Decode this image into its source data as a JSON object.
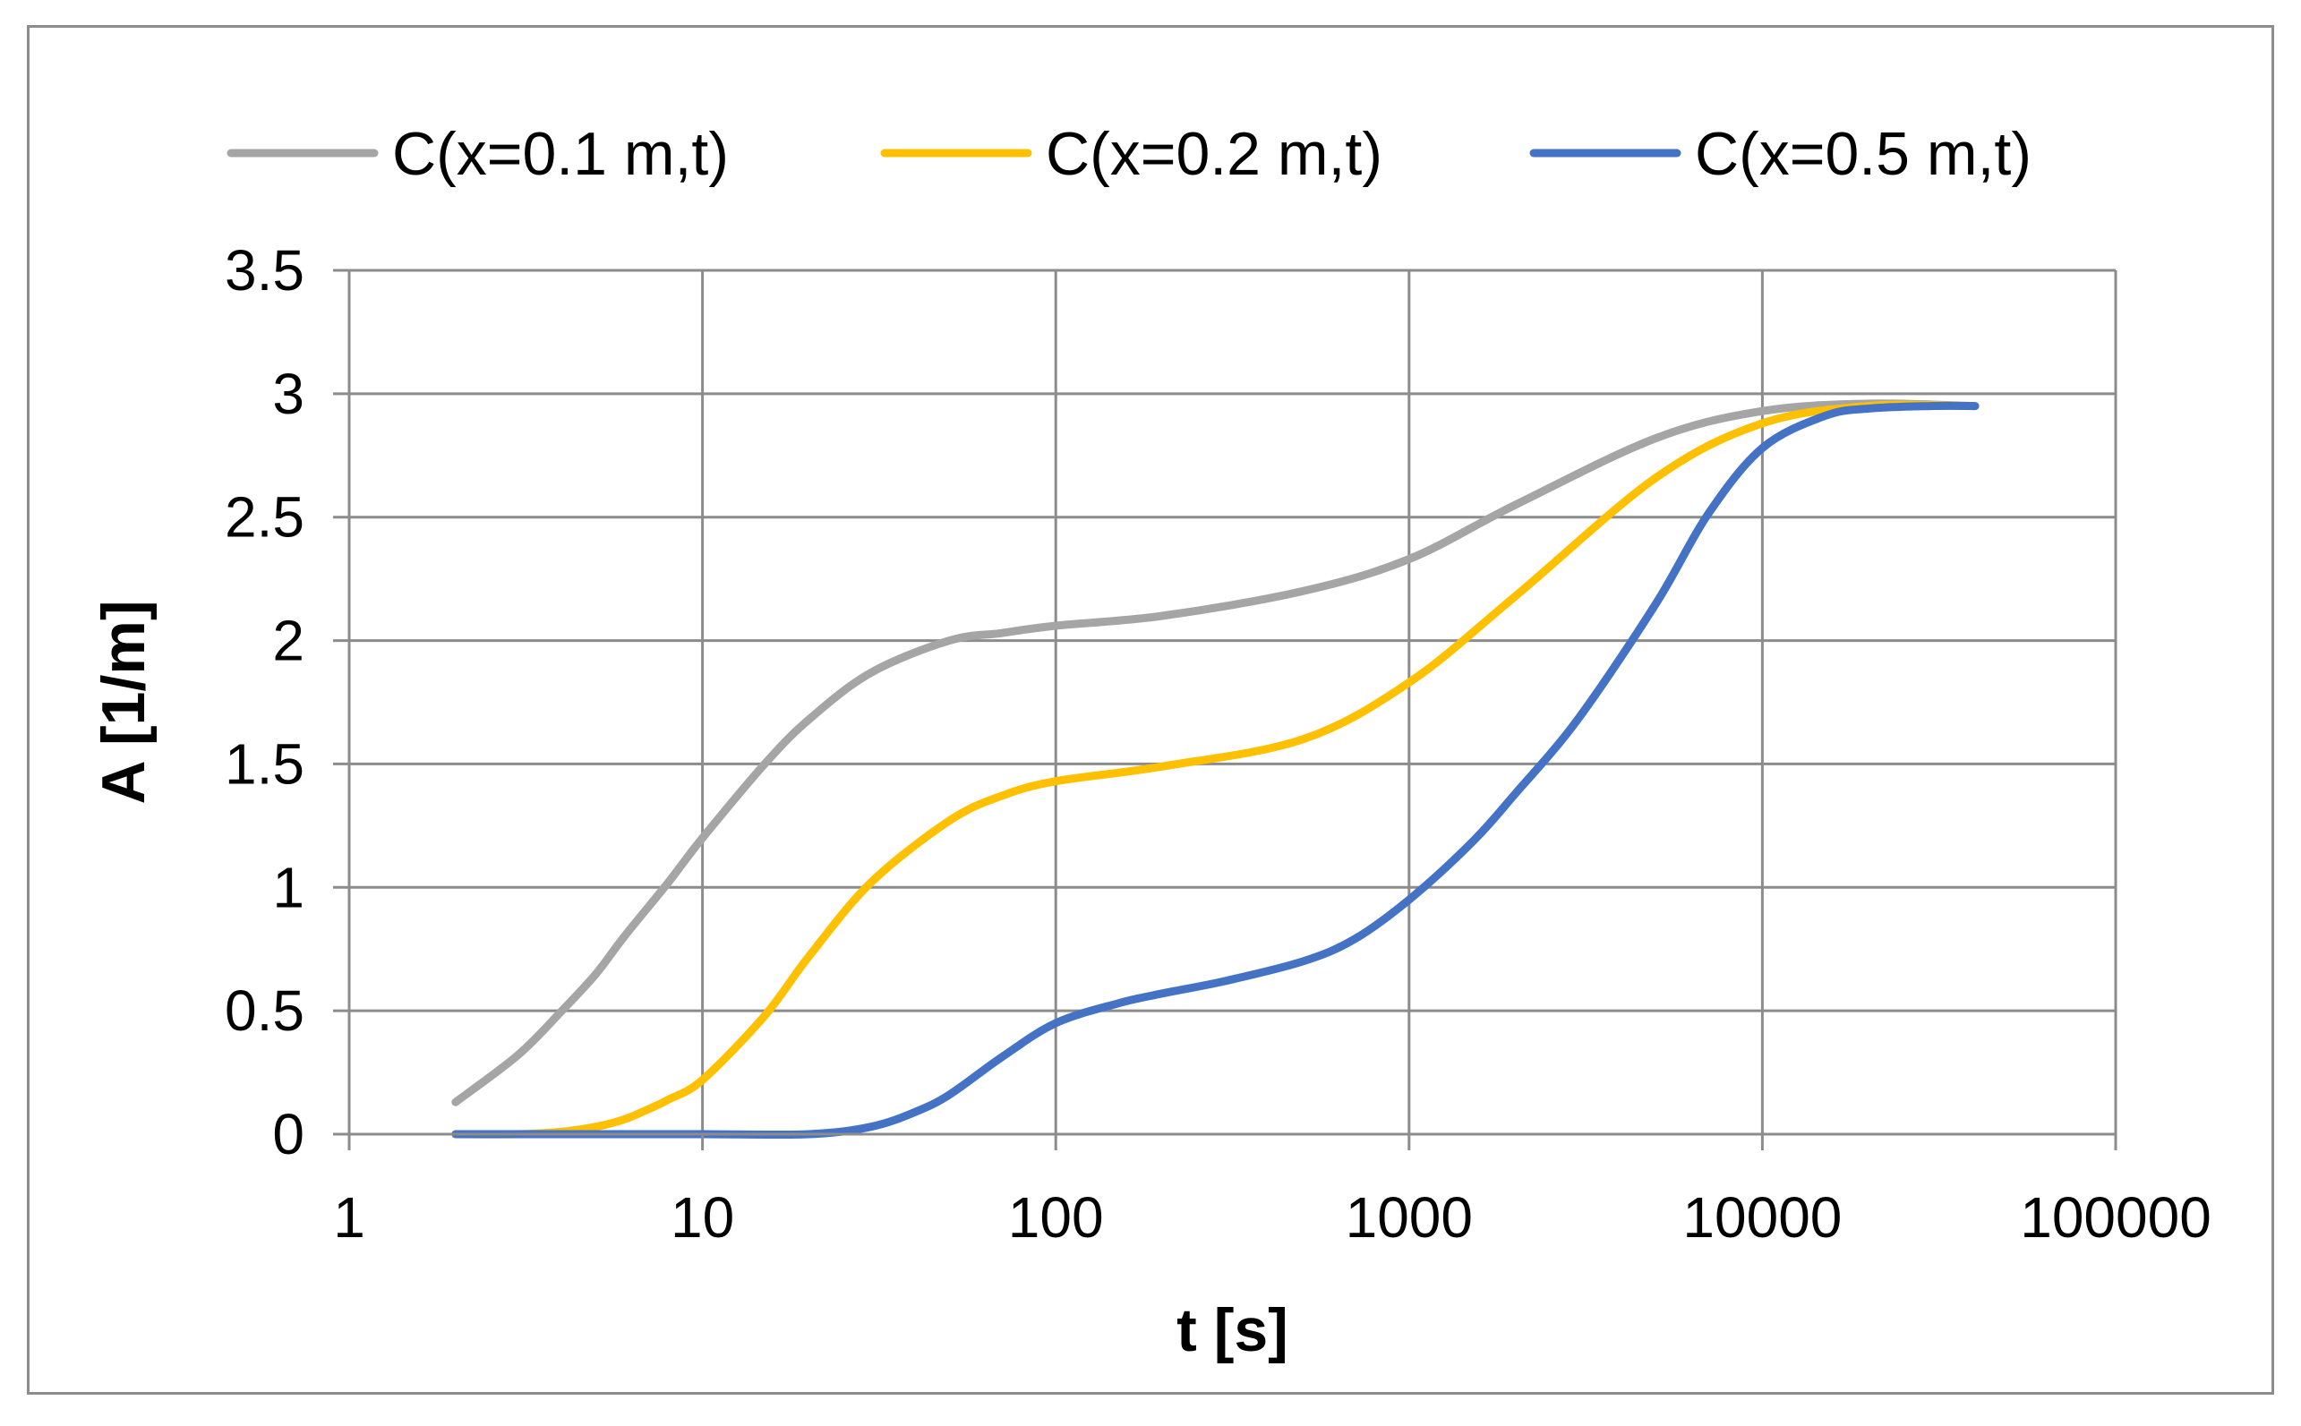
{
  "chart_data": {
    "type": "line",
    "title": "",
    "xlabel": "t [s]",
    "ylabel": "A [1/m]",
    "xscale": "log",
    "xlim": [
      1,
      100000
    ],
    "ylim": [
      0,
      3.5
    ],
    "x_ticks": [
      1,
      10,
      100,
      1000,
      10000,
      100000
    ],
    "x_tick_labels": [
      "1",
      "10",
      "100",
      "1000",
      "10000",
      "100000"
    ],
    "y_ticks": [
      0,
      0.5,
      1,
      1.5,
      2,
      2.5,
      3,
      3.5
    ],
    "y_tick_labels": [
      "0",
      "0.5",
      "1",
      "1.5",
      "2",
      "2.5",
      "3",
      "3.5"
    ],
    "grid": true,
    "legend_position": "top",
    "series": [
      {
        "name": "C(x=0.1 m,t)",
        "color": "#A5A5A5",
        "x": [
          2,
          3,
          4,
          5,
          6,
          8,
          10,
          15,
          20,
          30,
          50,
          70,
          100,
          200,
          500,
          1000,
          2000,
          5000,
          10000,
          20000,
          40000
        ],
        "y": [
          0.13,
          0.32,
          0.5,
          0.65,
          0.8,
          1.02,
          1.2,
          1.5,
          1.68,
          1.87,
          2.0,
          2.03,
          2.06,
          2.1,
          2.2,
          2.33,
          2.55,
          2.82,
          2.93,
          2.96,
          2.95
        ]
      },
      {
        "name": "C(x=0.2 m,t)",
        "color": "#FFC000",
        "x": [
          2,
          3,
          4,
          5,
          6,
          7,
          8,
          10,
          15,
          20,
          30,
          50,
          70,
          100,
          200,
          500,
          1000,
          2000,
          5000,
          10000,
          20000,
          40000
        ],
        "y": [
          0.0,
          0.0,
          0.01,
          0.03,
          0.06,
          0.1,
          0.14,
          0.22,
          0.48,
          0.72,
          1.02,
          1.27,
          1.37,
          1.43,
          1.49,
          1.6,
          1.83,
          2.18,
          2.66,
          2.88,
          2.95,
          2.95
        ]
      },
      {
        "name": "C(x=0.5 m,t)",
        "color": "#4472C4",
        "x": [
          2,
          5,
          10,
          20,
          30,
          40,
          50,
          70,
          100,
          150,
          200,
          300,
          500,
          700,
          1000,
          1500,
          2000,
          3000,
          5000,
          7000,
          10000,
          15000,
          20000,
          30000,
          40000
        ],
        "y": [
          0.0,
          0.0,
          0.0,
          0.0,
          0.03,
          0.09,
          0.16,
          0.31,
          0.45,
          0.53,
          0.57,
          0.62,
          0.7,
          0.79,
          0.95,
          1.18,
          1.38,
          1.68,
          2.15,
          2.51,
          2.78,
          2.91,
          2.94,
          2.95,
          2.95
        ]
      }
    ]
  }
}
